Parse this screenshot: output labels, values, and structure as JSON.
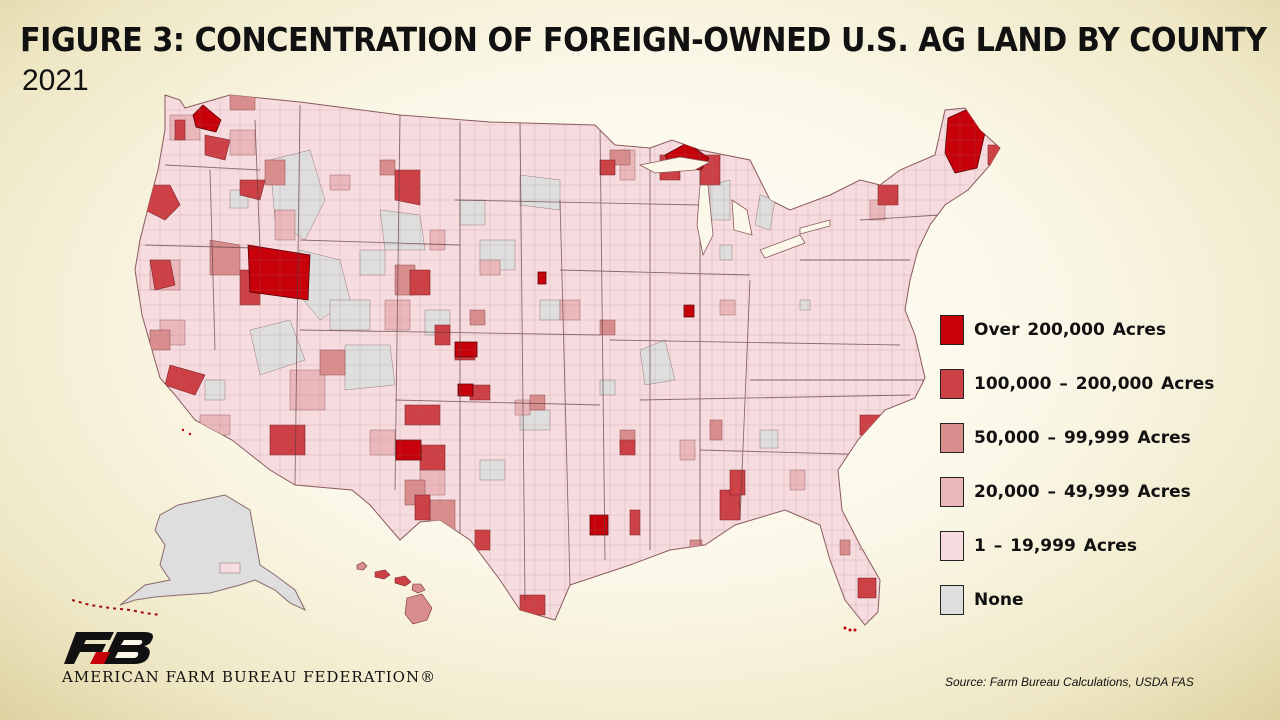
{
  "title": "FIGURE 3: CONCENTRATION OF FOREIGN-OWNED U.S. AG LAND BY COUNTY",
  "subtitle": "2021",
  "legend": [
    {
      "label": "Over 200,000 Acres",
      "color": "#c8000a"
    },
    {
      "label": "100,000 – 200,000 Acres",
      "color": "#cd4045"
    },
    {
      "label": "50,000 – 99,999 Acres",
      "color": "#d98e8e"
    },
    {
      "label": "20,000 – 49,999 Acres",
      "color": "#eab8bb"
    },
    {
      "label": "1 – 19,999 Acres",
      "color": "#f6dcdf"
    },
    {
      "label": "None",
      "color": "#dedede"
    }
  ],
  "regions": {
    "contiguous_us": "contiguous-us-counties",
    "alaska": "alaska",
    "hawaii": "hawaii"
  },
  "logo": {
    "org_name": "AMERICAN FARM BUREAU FEDERATION®",
    "icon": "fb-logo-icon"
  },
  "source": "Source: Farm Bureau Calculations, USDA FAS"
}
